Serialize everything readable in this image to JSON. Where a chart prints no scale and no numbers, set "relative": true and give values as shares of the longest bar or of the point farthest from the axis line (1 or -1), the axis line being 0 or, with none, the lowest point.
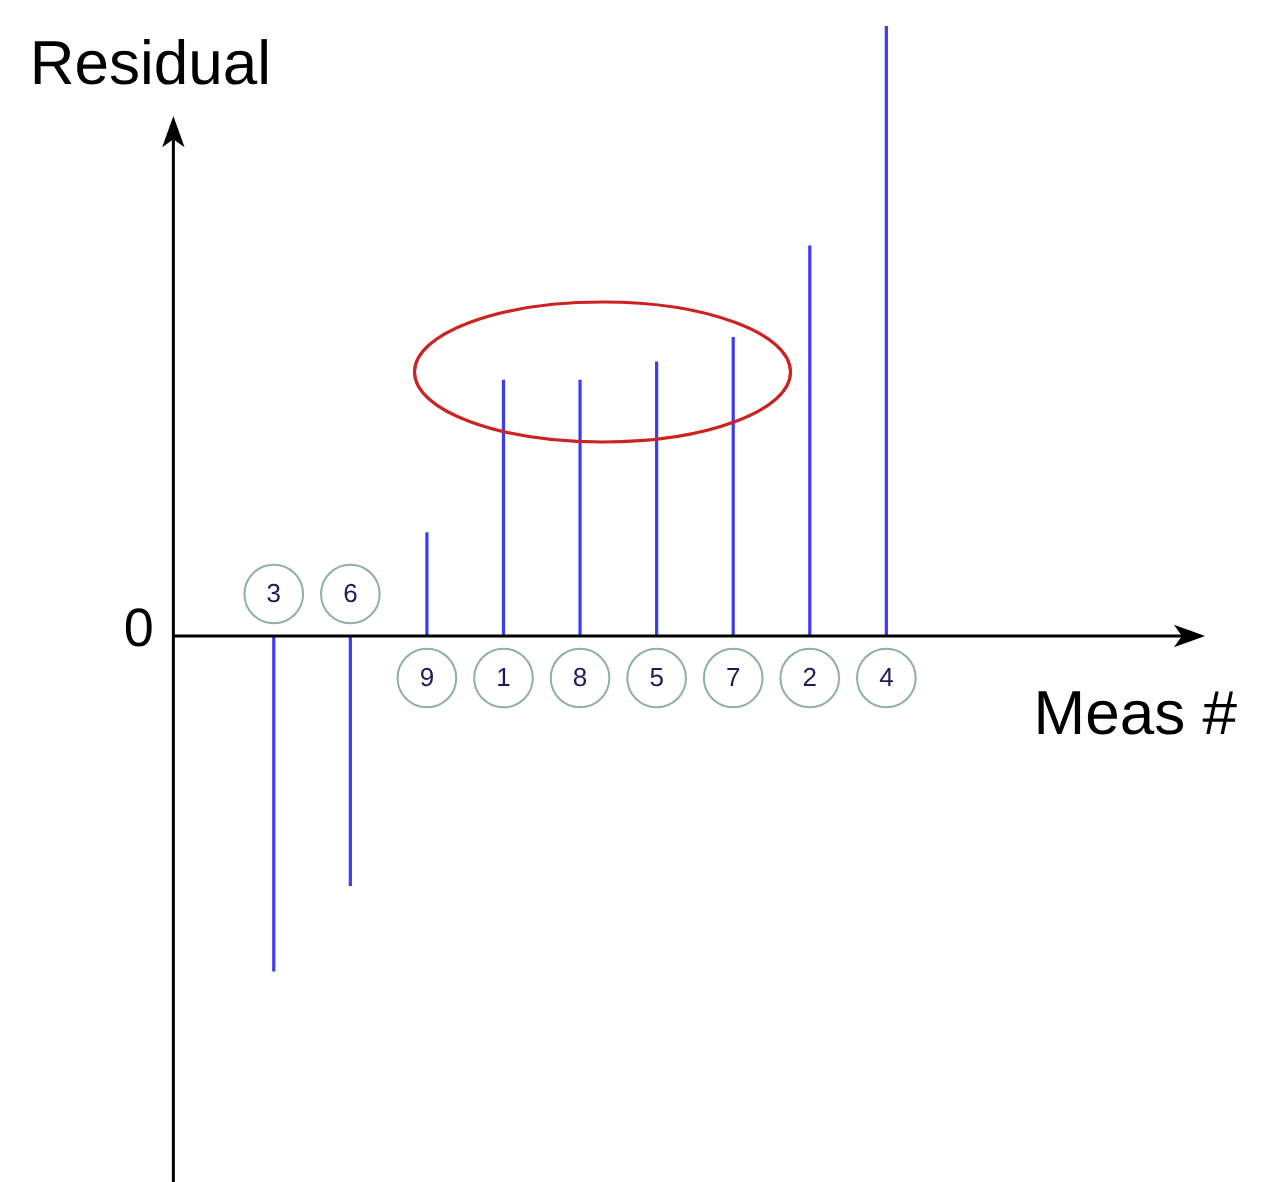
{
  "chart_data": {
    "type": "bar",
    "ylabel": "Residual",
    "xlabel": "Meas #",
    "categories": [
      "3",
      "6",
      "9",
      "1",
      "8",
      "5",
      "7",
      "2",
      "4"
    ],
    "values": [
      -0.55,
      -0.41,
      0.17,
      0.42,
      0.42,
      0.45,
      0.49,
      0.64,
      1
    ],
    "color": "#3c3cf5",
    "relative": true,
    "annotations": [
      "0"
    ]
  }
}
